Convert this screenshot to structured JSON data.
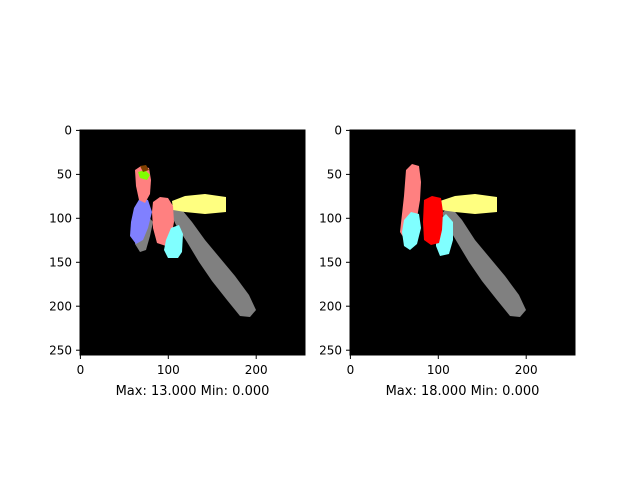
{
  "panels": [
    {
      "caption": "Max: 13.000 Min: 0.000",
      "x_ticks": [
        "0",
        "100",
        "200"
      ],
      "y_ticks": [
        "0",
        "50",
        "100",
        "150",
        "200",
        "250"
      ],
      "extent": [
        0,
        256
      ],
      "background": "#000000"
    },
    {
      "caption": "Max: 18.000 Min: 0.000",
      "x_ticks": [
        "0",
        "100",
        "200"
      ],
      "y_ticks": [
        "0",
        "50",
        "100",
        "150",
        "200",
        "250"
      ],
      "extent": [
        0,
        256
      ],
      "background": "#000000"
    }
  ],
  "segment_colors": {
    "gray": "#808080",
    "yellow": "#ffff80",
    "salmon": "#ff8080",
    "cyan": "#80ffff",
    "blue": "#8080ff",
    "red": "#ff0000",
    "green": "#80ff00",
    "brown": "#804000"
  }
}
